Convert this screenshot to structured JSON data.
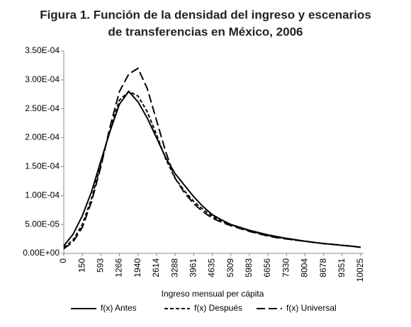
{
  "chart_data": {
    "type": "line",
    "title": [
      "Figura 1. Función de la densidad del ingreso y escenarios",
      "de transferencias en México, 2006"
    ],
    "x_label": "Ingreso mensual per cápita",
    "categories": [
      "0",
      null,
      "150",
      null,
      "593",
      null,
      "1266",
      null,
      "1940",
      null,
      "2614",
      null,
      "3288",
      null,
      "3961",
      null,
      "4635",
      null,
      "5309",
      null,
      "5983",
      null,
      "6656",
      null,
      "7330",
      null,
      "8004",
      null,
      "8678",
      null,
      "9351",
      null,
      "10025"
    ],
    "ylim": [
      0,
      0.00035
    ],
    "yticks": [
      {
        "value": 0,
        "label": "0.00E+00"
      },
      {
        "value": 5e-05,
        "label": "5.00E-05"
      },
      {
        "value": 0.0001,
        "label": "1.00E-04"
      },
      {
        "value": 0.00015,
        "label": "1.50E-04"
      },
      {
        "value": 0.0002,
        "label": "2.00E-04"
      },
      {
        "value": 0.00025,
        "label": "2.50E-04"
      },
      {
        "value": 0.0003,
        "label": "3.00E-04"
      },
      {
        "value": 0.00035,
        "label": "3.50E-04"
      }
    ],
    "grid": false,
    "legend": "bottom",
    "series": [
      {
        "name": "f(x) Antes",
        "color": "#000000",
        "dash": "solid",
        "values": [
          1.3e-05,
          3.3e-05,
          6.5e-05,
          0.000107,
          0.00016,
          0.000212,
          0.000258,
          0.00028,
          0.000262,
          0.000234,
          0.0002,
          0.000165,
          0.000138,
          0.000118,
          9.8e-05,
          8.1e-05,
          6.7e-05,
          5.8e-05,
          5e-05,
          4.5e-05,
          4e-05,
          3.6e-05,
          3.2e-05,
          2.9e-05,
          2.6e-05,
          2.35e-05,
          2.1e-05,
          1.9e-05,
          1.7e-05,
          1.55e-05,
          1.4e-05,
          1.25e-05,
          1.05e-05
        ]
      },
      {
        "name": "f(x) Después",
        "color": "#000000",
        "dash": "short",
        "values": [
          1e-05,
          2.3e-05,
          5e-05,
          9.5e-05,
          0.000155,
          0.000215,
          0.000265,
          0.00028,
          0.000272,
          0.000245,
          0.000205,
          0.000163,
          0.00013,
          0.000108,
          9e-05,
          7.6e-05,
          6.4e-05,
          5.6e-05,
          4.9e-05,
          4.4e-05,
          3.9e-05,
          3.5e-05,
          3.1e-05,
          2.8e-05,
          2.5e-05,
          2.3e-05,
          2.1e-05,
          1.9e-05,
          1.7e-05,
          1.55e-05,
          1.4e-05,
          1.25e-05,
          1.05e-05
        ]
      },
      {
        "name": "f(x) Universal",
        "color": "#000000",
        "dash": "long",
        "values": [
          8e-06,
          2e-05,
          4.5e-05,
          9e-05,
          0.00015,
          0.00022,
          0.00028,
          0.00031,
          0.00032,
          0.000285,
          0.00023,
          0.000175,
          0.00013,
          0.000105,
          8.6e-05,
          7.2e-05,
          6.1e-05,
          5.4e-05,
          4.8e-05,
          4.3e-05,
          3.8e-05,
          3.4e-05,
          3e-05,
          2.7e-05,
          2.5e-05,
          2.3e-05,
          2.1e-05,
          1.9e-05,
          1.7e-05,
          1.55e-05,
          1.4e-05,
          1.25e-05,
          1.05e-05
        ]
      }
    ]
  }
}
